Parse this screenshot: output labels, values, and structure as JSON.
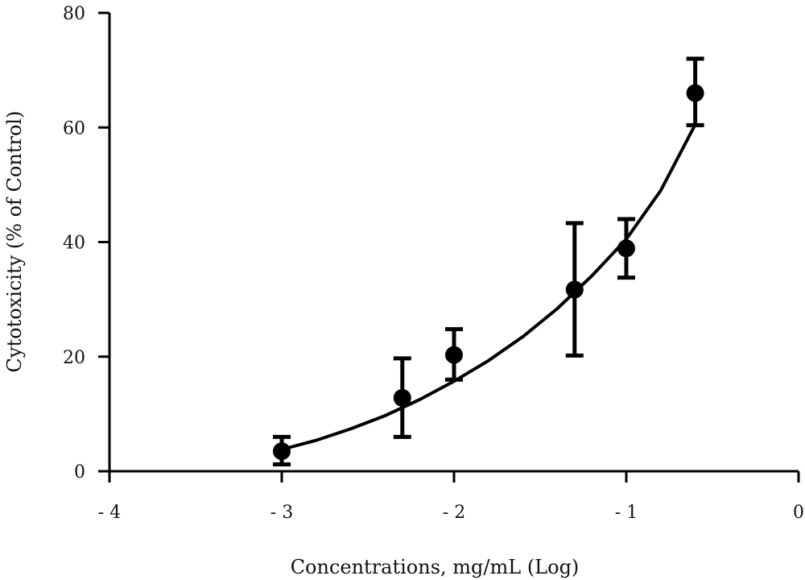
{
  "chart_data": {
    "type": "scatter",
    "xlabel": "Concentrations, mg/mL (Log)",
    "ylabel": "Cytotoxicity (% of Control)",
    "xlim": [
      -4,
      0
    ],
    "ylim": [
      0,
      80
    ],
    "x_ticks": [
      -4,
      -3,
      -2,
      -1,
      0
    ],
    "x_tick_labels": [
      "- 4",
      "- 3",
      "- 2",
      "- 1",
      "0"
    ],
    "y_ticks": [
      0,
      20,
      40,
      60,
      80
    ],
    "y_tick_labels": [
      "0",
      "20",
      "40",
      "60",
      "80"
    ],
    "grid": false,
    "legend": "none",
    "points": [
      {
        "x": -3.0,
        "y": 3.5,
        "err_low": 1.2,
        "err_high": 6.0
      },
      {
        "x": -2.3,
        "y": 12.8,
        "err_low": 6.0,
        "err_high": 19.7
      },
      {
        "x": -2.0,
        "y": 20.3,
        "err_low": 16.0,
        "err_high": 24.8
      },
      {
        "x": -1.3,
        "y": 31.7,
        "err_low": 20.2,
        "err_high": 43.3
      },
      {
        "x": -1.0,
        "y": 38.9,
        "err_low": 33.8,
        "err_high": 44.0
      },
      {
        "x": -0.6,
        "y": 66.0,
        "err_low": 60.4,
        "err_high": 72.0
      }
    ],
    "fit_curve": {
      "x": [
        -3.0,
        -2.8,
        -2.6,
        -2.4,
        -2.2,
        -2.0,
        -1.8,
        -1.6,
        -1.4,
        -1.2,
        -1.0,
        -0.8,
        -0.6
      ],
      "y": [
        3.8,
        5.4,
        7.4,
        9.7,
        12.5,
        15.7,
        19.3,
        23.5,
        28.4,
        34.1,
        40.5,
        49.0,
        60.5
      ]
    }
  }
}
